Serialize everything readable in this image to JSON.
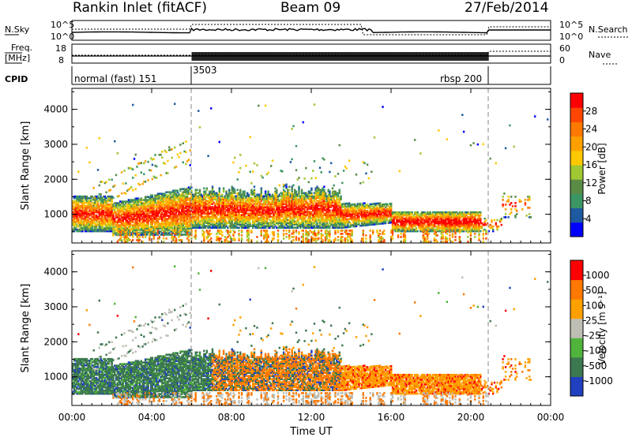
{
  "header": {
    "station": "Rankin Inlet (fitACF)",
    "beam": "Beam 09",
    "date": "27/Feb/2014"
  },
  "strip": {
    "nsky_label": "N.Sky",
    "nsky_ticks": [
      "10^5",
      "10^0"
    ],
    "nsearch_label": "N.Search",
    "nsearch_ticks": [
      "10^5",
      "10^0"
    ],
    "freq_label": "Freq.",
    "freq_unit": "[MHz]",
    "freq_ticks": [
      "18",
      "8"
    ],
    "nave_label": "Nave",
    "nave_ticks": [
      "60",
      "0"
    ],
    "cpid_label": "CPID",
    "cpid_segments": [
      "normal (fast) 151",
      "3503",
      "rbsp 200"
    ]
  },
  "colors": {
    "power": [
      "#0000ff",
      "#1e5aa0",
      "#3c9664",
      "#5a8c46",
      "#a0c832",
      "#ffc800",
      "#ffa000",
      "#ff7800",
      "#ff4600",
      "#ff0000"
    ],
    "velocity": [
      "#2040c0",
      "#3c7850",
      "#50b43c",
      "#bebeb4",
      "#ffa000",
      "#ff7800",
      "#ff0000"
    ]
  },
  "chart_data": [
    {
      "type": "heatmap",
      "panel": "power",
      "ylabel": "Slant Range [km]",
      "y_ticks": [
        "4000",
        "3000",
        "2000",
        "1000"
      ],
      "ylim": [
        180,
        4600
      ],
      "colorbar_label": "Power [dB]",
      "colorbar_ticks": [
        "28",
        "24",
        "20",
        "16",
        "12",
        "8",
        "4"
      ],
      "colorbar_range": [
        0,
        30
      ]
    },
    {
      "type": "heatmap",
      "panel": "velocity",
      "ylabel": "Slant Range [km]",
      "y_ticks": [
        "4000",
        "3000",
        "2000",
        "1000"
      ],
      "ylim": [
        180,
        4600
      ],
      "colorbar_label": "Velocity [m s⁻¹]",
      "colorbar_ticks": [
        "1000",
        "500",
        "100",
        "25",
        "-25",
        "-100",
        "-500",
        "-1000"
      ]
    },
    {
      "type": "line",
      "panel": "time-axis",
      "xlabel": "Time UT",
      "x_ticks": [
        "00:00",
        "04:00",
        "08:00",
        "12:00",
        "16:00",
        "20:00",
        "00:00"
      ],
      "xlim": [
        0,
        24
      ]
    }
  ]
}
